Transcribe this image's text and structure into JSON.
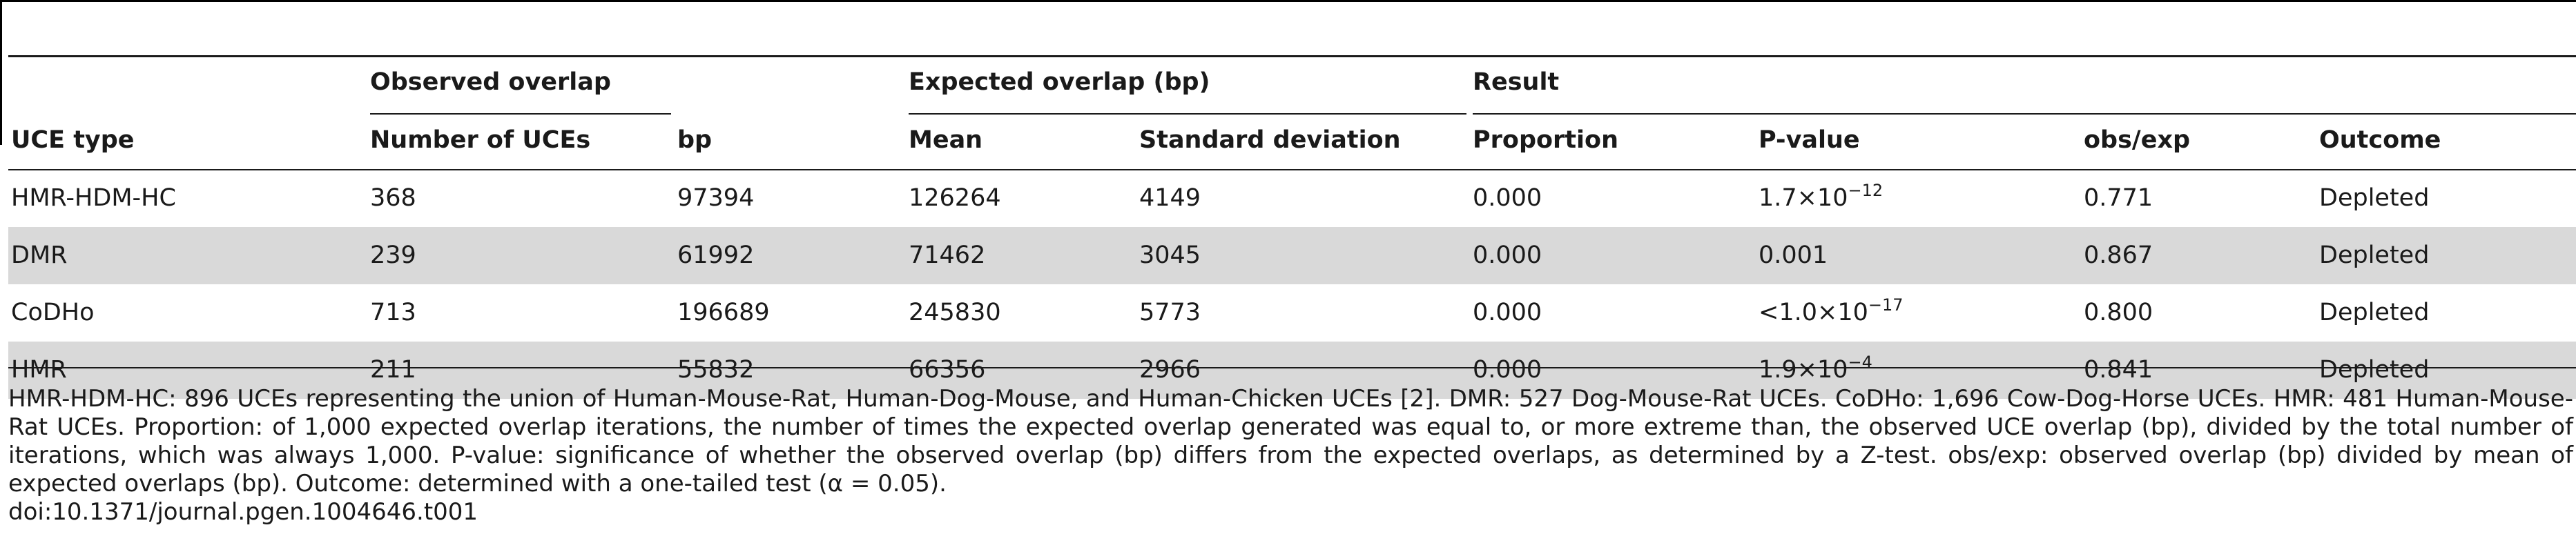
{
  "table": {
    "group_headers": {
      "observed": "Observed overlap",
      "expected": "Expected overlap (bp)",
      "result": "Result"
    },
    "columns": [
      "UCE type",
      "Number of UCEs",
      "bp",
      "Mean",
      "Standard deviation",
      "Proportion",
      "P-value",
      "obs/exp",
      "Outcome"
    ],
    "rows": [
      {
        "type": "HMR-HDM-HC",
        "num": "368",
        "bp": "97394",
        "mean": "126264",
        "sd": "4149",
        "prop": "0.000",
        "p_base": "1.7×10",
        "p_exp": "−12",
        "ratio": "0.771",
        "outcome": "Depleted"
      },
      {
        "type": "DMR",
        "num": "239",
        "bp": "61992",
        "mean": "71462",
        "sd": "3045",
        "prop": "0.000",
        "p_base": "0.001",
        "p_exp": "",
        "ratio": "0.867",
        "outcome": "Depleted"
      },
      {
        "type": "CoDHo",
        "num": "713",
        "bp": "196689",
        "mean": "245830",
        "sd": "5773",
        "prop": "0.000",
        "p_base": "<1.0×10",
        "p_exp": "−17",
        "ratio": "0.800",
        "outcome": "Depleted"
      },
      {
        "type": "HMR",
        "num": "211",
        "bp": "55832",
        "mean": "66356",
        "sd": "2966",
        "prop": "0.000",
        "p_base": "1.9×10",
        "p_exp": "−4",
        "ratio": "0.841",
        "outcome": "Depleted"
      }
    ]
  },
  "footnote": "HMR-HDM-HC: 896 UCEs representing the union of Human-Mouse-Rat, Human-Dog-Mouse, and Human-Chicken UCEs [2]. DMR: 527 Dog-Mouse-Rat UCEs. CoDHo: 1,696 Cow-Dog-Horse UCEs. HMR: 481 Human-Mouse-Rat UCEs. Proportion: of 1,000 expected overlap iterations, the number of times the expected overlap generated was equal to, or more extreme than, the observed UCE overlap (bp), divided by the total number of iterations, which was always 1,000. P-value: significance of whether the observed overlap (bp) differs from the expected overlaps, as determined by a Z-test. obs/exp: observed overlap (bp) divided by mean of expected overlaps (bp). Outcome: determined with a one-tailed test (α = 0.05).",
  "doi": "doi:10.1371/journal.pgen.1004646.t001"
}
